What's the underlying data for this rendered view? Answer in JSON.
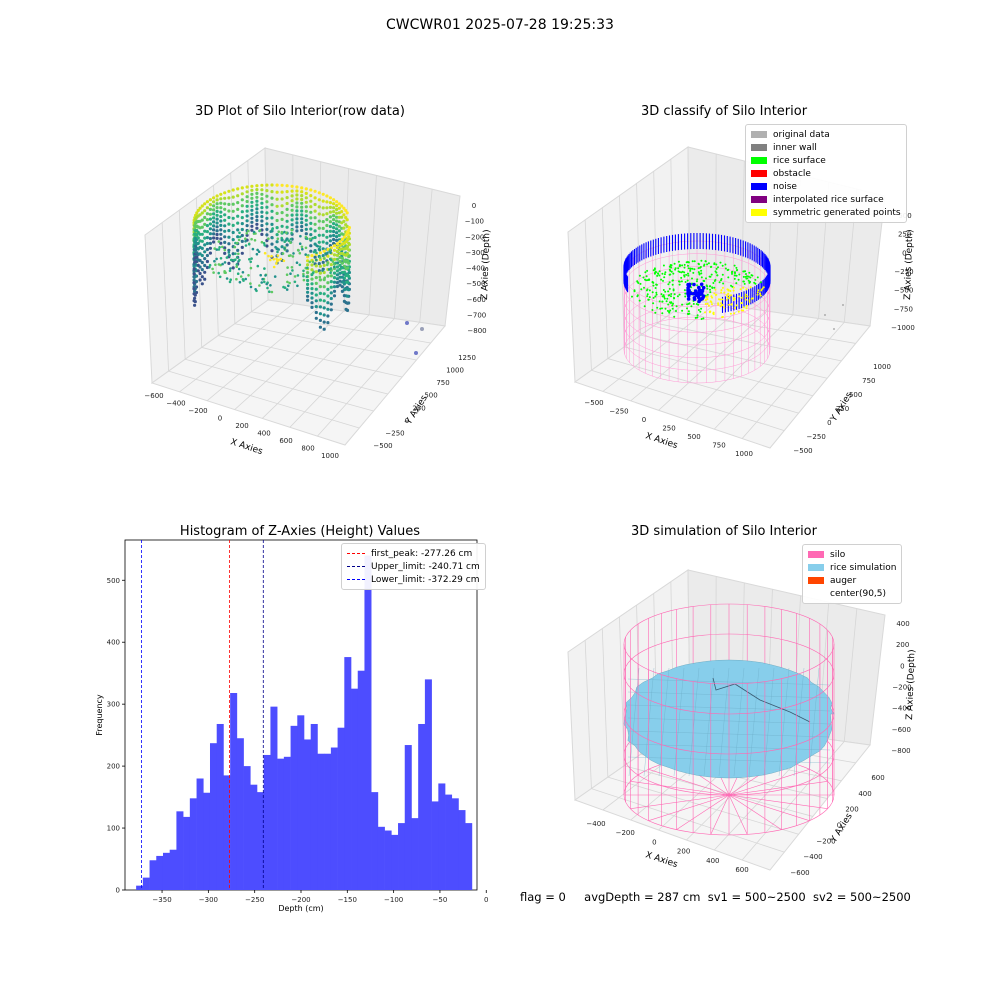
{
  "suptitle": "CWCWR01 2025-07-28 19:25:33",
  "status": {
    "flag": "flag = 0",
    "avg_depth": "avgDepth = 287 cm",
    "sv1": "sv1 = 500~2500",
    "sv2": "sv2 = 500~2500"
  },
  "chart_data": [
    {
      "type": "scatter",
      "title": "3D Plot of Silo Interior(row data)",
      "xlabel": "X Axies",
      "ylabel": "Y Axies",
      "zlabel": "Z Axies (Depth)",
      "x_ticks": [
        "−600",
        "−400",
        "−200",
        "0",
        "200",
        "400",
        "600",
        "800",
        "1000"
      ],
      "y_ticks": [
        "−500",
        "−250",
        "0",
        "250",
        "500",
        "750",
        "1000",
        "1250"
      ],
      "z_ticks": [
        "0",
        "−100",
        "−200",
        "−300",
        "−400",
        "−500",
        "−600",
        "−700",
        "−800"
      ],
      "colormap": "viridis",
      "grid": true
    },
    {
      "type": "scatter",
      "title": "3D classify of Silo Interior",
      "xlabel": "X Axies",
      "ylabel": "Y Axies",
      "zlabel": "Z Axies (Depth)",
      "x_ticks": [
        "−500",
        "−250",
        "0",
        "250",
        "500",
        "750",
        "1000"
      ],
      "y_ticks": [
        "−500",
        "−250",
        "0",
        "250",
        "500",
        "750",
        "1000"
      ],
      "z_ticks": [
        "500",
        "250",
        "0",
        "−250",
        "−500",
        "−750",
        "−1000"
      ],
      "legend": [
        {
          "label": "original data",
          "color": "#b0b0b0"
        },
        {
          "label": "inner wall",
          "color": "#808080"
        },
        {
          "label": "rice surface",
          "color": "#00ff00"
        },
        {
          "label": "obstacle",
          "color": "#ff0000"
        },
        {
          "label": "noise",
          "color": "#0000ff"
        },
        {
          "label": "interpolated rice surface",
          "color": "#800080"
        },
        {
          "label": "symmetric generated points",
          "color": "#ffff00"
        }
      ],
      "legend_position": "top-right",
      "grid": true
    },
    {
      "type": "bar",
      "title": "Histogram of Z-Axies (Height) Values",
      "xlabel": "Depth (cm)",
      "ylabel": "Frequency",
      "xlim": [
        -390,
        -10
      ],
      "ylim": [
        0,
        565
      ],
      "x_ticks": [
        -350,
        -300,
        -250,
        -200,
        -150,
        -100,
        -50,
        0
      ],
      "x_tick_labels": [
        "−350",
        "−300",
        "−250",
        "−200",
        "−150",
        "−100",
        "−50",
        "0"
      ],
      "y_ticks": [
        0,
        100,
        200,
        300,
        400,
        500
      ],
      "bar_color": "#4d4dff",
      "bins": {
        "start": -378,
        "width": 7.25,
        "counts": [
          7,
          20,
          48,
          55,
          60,
          65,
          127,
          118,
          148,
          180,
          157,
          237,
          268,
          185,
          318,
          245,
          200,
          170,
          158,
          218,
          296,
          212,
          215,
          265,
          282,
          243,
          268,
          220,
          220,
          230,
          262,
          376,
          325,
          354,
          540,
          158,
          102,
          96,
          89,
          108,
          234,
          116,
          268,
          340,
          143,
          172,
          154,
          148,
          129,
          108
        ]
      },
      "lines": [
        {
          "label": "first_peak: -277.26 cm",
          "x": -277.26,
          "color": "#ff0000"
        },
        {
          "label": "Upper_limit: -240.71 cm",
          "x": -240.71,
          "color": "#00008b"
        },
        {
          "label": "Lower_limit: -372.29 cm",
          "x": -372.29,
          "color": "#0000ff"
        }
      ],
      "legend_position": "top-right"
    },
    {
      "type": "area",
      "title": "3D simulation of Silo Interior",
      "xlabel": "X Axies",
      "ylabel": "Y Axies",
      "zlabel": "Z Axies (Depth)",
      "x_ticks": [
        "−400",
        "−200",
        "0",
        "200",
        "400",
        "600"
      ],
      "y_ticks": [
        "−600",
        "−400",
        "−200",
        "0",
        "200",
        "400",
        "600"
      ],
      "z_ticks": [
        "400",
        "200",
        "0",
        "−200",
        "−400",
        "−600",
        "−800"
      ],
      "legend": [
        {
          "label": "silo",
          "color": "#ff69b4"
        },
        {
          "label": "rice simulation",
          "color": "#87ceeb"
        },
        {
          "label": "auger",
          "color": "#ff4500"
        },
        {
          "label": "center(90,5)",
          "color": "#ffffff"
        }
      ],
      "legend_position": "top-right",
      "grid": true
    }
  ]
}
